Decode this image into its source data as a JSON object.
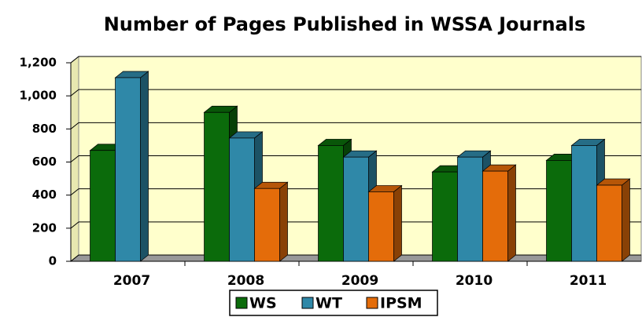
{
  "chart_data": {
    "type": "bar3d",
    "title": "Number of Pages Published in WSSA Journals",
    "categories": [
      "2007",
      "2008",
      "2009",
      "2010",
      "2011"
    ],
    "series": [
      {
        "name": "WS",
        "color": "#0b6b0b",
        "values": [
          670,
          900,
          700,
          540,
          610
        ]
      },
      {
        "name": "WT",
        "color": "#2f88a8",
        "values": [
          1110,
          745,
          630,
          630,
          700
        ]
      },
      {
        "name": "IPSM",
        "color": "#e46c0a",
        "values": [
          null,
          440,
          420,
          545,
          460
        ]
      }
    ],
    "ylim": [
      0,
      1200
    ],
    "yticks": [
      0,
      200,
      400,
      600,
      800,
      {
        "value": 1000,
        "label": "1,000"
      },
      {
        "value": 1200,
        "label": "1,200"
      }
    ],
    "grid": true,
    "legend": "bottom"
  }
}
